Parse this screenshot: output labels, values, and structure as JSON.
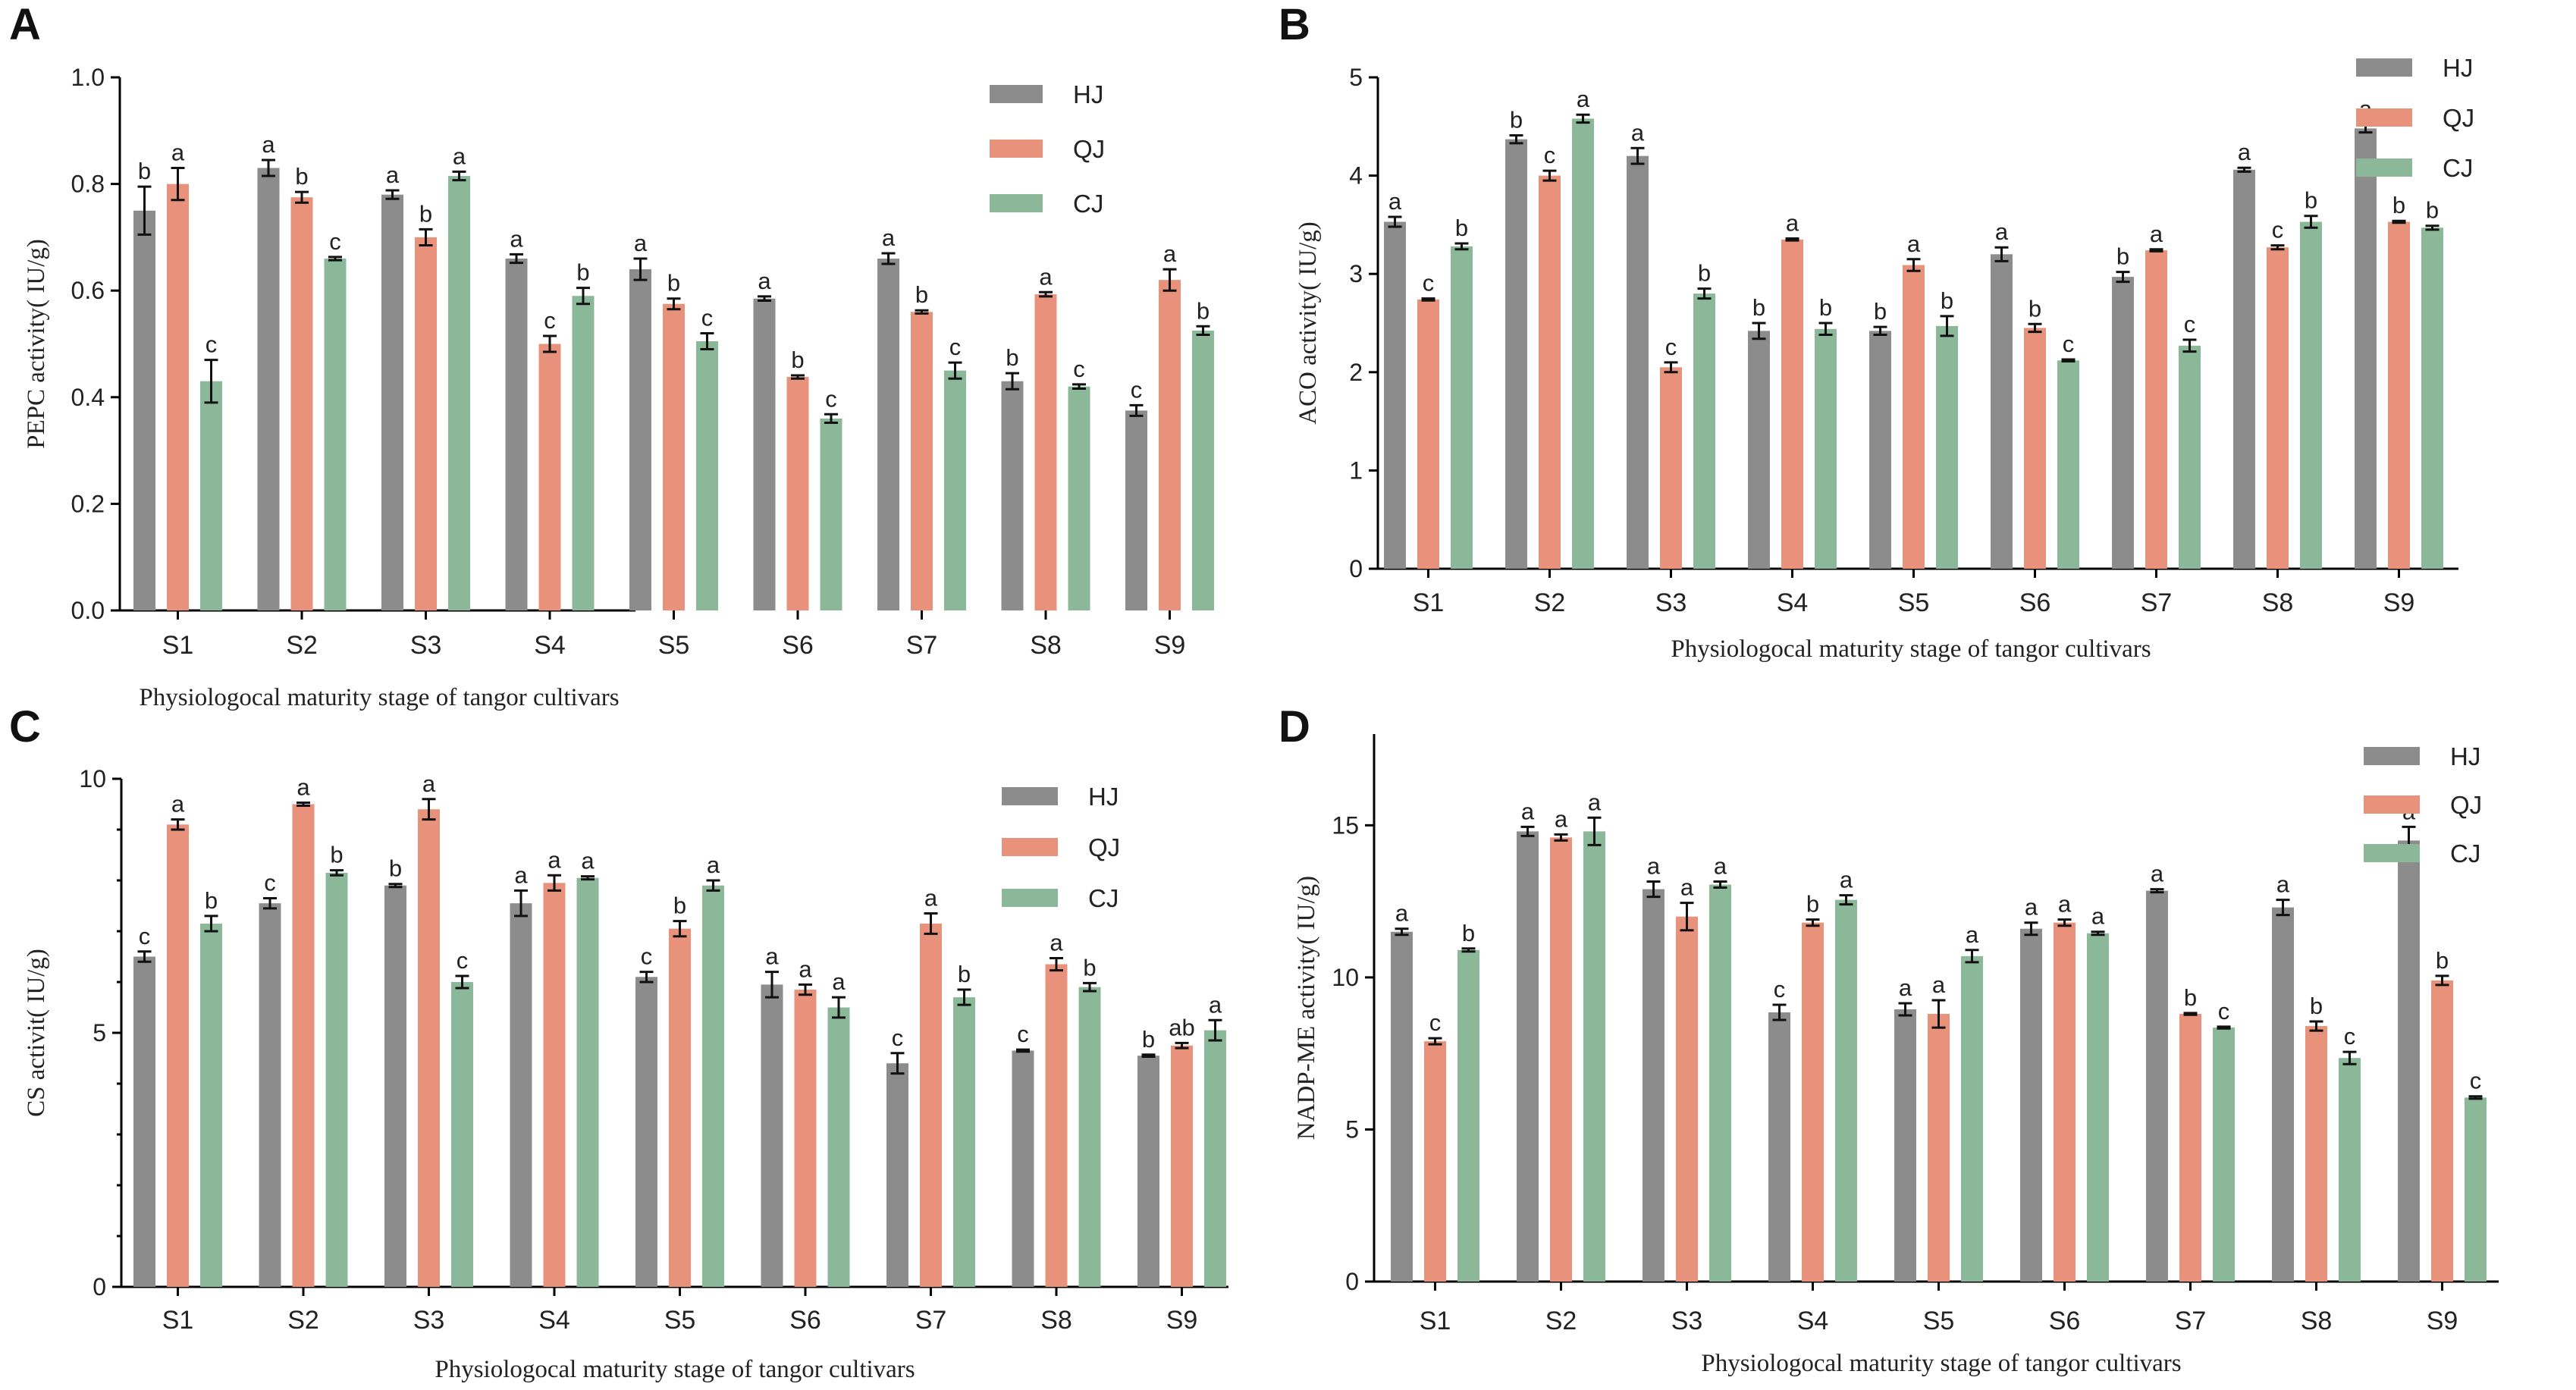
{
  "colors": {
    "HJ": "#8c8c8c",
    "QJ": "#e8927c",
    "CJ": "#8cb89a"
  },
  "chart_data": [
    {
      "type": "bar",
      "panel": "A",
      "ylabel": "PEPC activity( IU/g)",
      "xlabel": "Physiologocal maturity stage of tangor cultivars",
      "ylim": [
        0,
        1.0
      ],
      "yticks": [
        "0.0",
        "0.2",
        "0.4",
        "0.6",
        "0.8",
        "1.0"
      ],
      "ytick_values": [
        0,
        0.2,
        0.4,
        0.6,
        0.8,
        1.0
      ],
      "legend_position": "top-right",
      "categories": [
        "S1",
        "S2",
        "S3",
        "S4",
        "S5",
        "S6",
        "S7",
        "S8",
        "S9"
      ],
      "series": [
        {
          "name": "HJ",
          "values": [
            0.75,
            0.83,
            0.78,
            0.66,
            0.64,
            0.585,
            0.66,
            0.43,
            0.375
          ],
          "errors": [
            0.045,
            0.015,
            0.008,
            0.008,
            0.02,
            0.004,
            0.01,
            0.015,
            0.01
          ],
          "letters": [
            "b",
            "a",
            "a",
            "a",
            "a",
            "a",
            "a",
            "b",
            "c"
          ]
        },
        {
          "name": "QJ",
          "values": [
            0.8,
            0.775,
            0.7,
            0.5,
            0.575,
            0.438,
            0.56,
            0.593,
            0.62
          ],
          "errors": [
            0.03,
            0.01,
            0.015,
            0.015,
            0.01,
            0.003,
            0.003,
            0.004,
            0.02
          ],
          "letters": [
            "a",
            "b",
            "b",
            "c",
            "b",
            "b",
            "b",
            "a",
            "a"
          ]
        },
        {
          "name": "CJ",
          "values": [
            0.43,
            0.66,
            0.815,
            0.59,
            0.505,
            0.36,
            0.45,
            0.42,
            0.525
          ],
          "errors": [
            0.04,
            0.003,
            0.008,
            0.015,
            0.015,
            0.008,
            0.015,
            0.004,
            0.008
          ],
          "letters": [
            "c",
            "c",
            "a",
            "b",
            "c",
            "c",
            "c",
            "c",
            "b"
          ]
        }
      ]
    },
    {
      "type": "bar",
      "panel": "B",
      "ylabel": "ACO activity( IU/g)",
      "xlabel": "Physiologocal maturity stage of tangor cultivars",
      "ylim": [
        0,
        5
      ],
      "yticks": [
        "0",
        "1",
        "2",
        "3",
        "4",
        "5"
      ],
      "ytick_values": [
        0,
        1,
        2,
        3,
        4,
        5
      ],
      "legend_position": "top-right",
      "categories": [
        "S1",
        "S2",
        "S3",
        "S4",
        "S5",
        "S6",
        "S7",
        "S8",
        "S9"
      ],
      "series": [
        {
          "name": "HJ",
          "values": [
            3.53,
            4.37,
            4.2,
            2.42,
            2.42,
            3.2,
            2.97,
            4.06,
            4.48
          ],
          "errors": [
            0.05,
            0.04,
            0.08,
            0.08,
            0.04,
            0.07,
            0.05,
            0.02,
            0.04
          ],
          "letters": [
            "a",
            "b",
            "a",
            "b",
            "b",
            "a",
            "b",
            "a",
            "a"
          ]
        },
        {
          "name": "QJ",
          "values": [
            2.74,
            4.0,
            2.05,
            3.35,
            3.09,
            2.45,
            3.24,
            3.27,
            3.53
          ],
          "errors": [
            0.01,
            0.05,
            0.05,
            0.01,
            0.06,
            0.04,
            0.01,
            0.02,
            0.01
          ],
          "letters": [
            "c",
            "c",
            "c",
            "a",
            "a",
            "b",
            "a",
            "c",
            "b"
          ]
        },
        {
          "name": "CJ",
          "values": [
            3.28,
            4.58,
            2.8,
            2.44,
            2.47,
            2.12,
            2.27,
            3.53,
            3.47
          ],
          "errors": [
            0.03,
            0.04,
            0.05,
            0.06,
            0.1,
            0.01,
            0.06,
            0.06,
            0.02
          ],
          "letters": [
            "b",
            "a",
            "b",
            "b",
            "b",
            "c",
            "c",
            "b",
            "b"
          ]
        }
      ]
    },
    {
      "type": "bar",
      "panel": "C",
      "ylabel": "CS activit( IU/g)",
      "xlabel": "Physiologocal maturity stage of tangor cultivars",
      "ylim": [
        0,
        10
      ],
      "yticks": [
        "0",
        "5",
        "10"
      ],
      "ytick_values": [
        0,
        5,
        10
      ],
      "minor_ticks": true,
      "legend_position": "top-right",
      "categories": [
        "S1",
        "S2",
        "S3",
        "S4",
        "S5",
        "S6",
        "S7",
        "S8",
        "S9"
      ],
      "series": [
        {
          "name": "HJ",
          "values": [
            6.5,
            7.55,
            7.9,
            7.55,
            6.1,
            5.95,
            4.4,
            4.65,
            4.55
          ],
          "errors": [
            0.1,
            0.1,
            0.03,
            0.25,
            0.1,
            0.25,
            0.2,
            0.02,
            0.02
          ],
          "letters": [
            "c",
            "c",
            "b",
            "a",
            "c",
            "a",
            "c",
            "c",
            "b"
          ]
        },
        {
          "name": "QJ",
          "values": [
            9.1,
            9.5,
            9.4,
            7.95,
            7.05,
            5.85,
            7.15,
            6.35,
            4.75
          ],
          "errors": [
            0.1,
            0.03,
            0.2,
            0.15,
            0.15,
            0.1,
            0.2,
            0.12,
            0.05
          ],
          "letters": [
            "a",
            "a",
            "a",
            "a",
            "b",
            "a",
            "a",
            "a",
            "ab"
          ]
        },
        {
          "name": "CJ",
          "values": [
            7.15,
            8.15,
            6.0,
            8.05,
            7.9,
            5.5,
            5.7,
            5.9,
            5.05
          ],
          "errors": [
            0.15,
            0.05,
            0.12,
            0.03,
            0.1,
            0.2,
            0.15,
            0.08,
            0.2
          ],
          "letters": [
            "b",
            "b",
            "c",
            "a",
            "a",
            "a",
            "b",
            "b",
            "a"
          ]
        }
      ]
    },
    {
      "type": "bar",
      "panel": "D",
      "ylabel": "NADP-ME activity( IU/g)",
      "xlabel": "Physiologocal maturity stage of tangor cultivars",
      "ylim": [
        0,
        18
      ],
      "yticks": [
        "0",
        "5",
        "10",
        "15"
      ],
      "ytick_values": [
        0,
        5,
        10,
        15
      ],
      "legend_position": "top-right",
      "categories": [
        "S1",
        "S2",
        "S3",
        "S4",
        "S5",
        "S6",
        "S7",
        "S8",
        "S9"
      ],
      "series": [
        {
          "name": "HJ",
          "values": [
            11.5,
            14.8,
            12.9,
            8.85,
            8.95,
            11.6,
            12.85,
            12.3,
            14.5
          ],
          "errors": [
            0.1,
            0.15,
            0.25,
            0.25,
            0.2,
            0.2,
            0.05,
            0.25,
            0.45
          ],
          "letters": [
            "a",
            "a",
            "a",
            "c",
            "a",
            "a",
            "a",
            "a",
            "a"
          ]
        },
        {
          "name": "QJ",
          "values": [
            7.9,
            14.6,
            12.0,
            11.8,
            8.8,
            11.8,
            8.8,
            8.4,
            9.9
          ],
          "errors": [
            0.1,
            0.1,
            0.45,
            0.1,
            0.45,
            0.1,
            0.03,
            0.15,
            0.15
          ],
          "letters": [
            "c",
            "a",
            "a",
            "b",
            "a",
            "a",
            "b",
            "b",
            "b"
          ]
        },
        {
          "name": "CJ",
          "values": [
            10.9,
            14.8,
            13.05,
            12.55,
            10.7,
            11.45,
            8.35,
            7.35,
            6.05
          ],
          "errors": [
            0.05,
            0.45,
            0.1,
            0.15,
            0.2,
            0.05,
            0.03,
            0.2,
            0.04
          ],
          "letters": [
            "b",
            "a",
            "a",
            "a",
            "a",
            "a",
            "c",
            "c",
            "c"
          ]
        }
      ]
    }
  ]
}
